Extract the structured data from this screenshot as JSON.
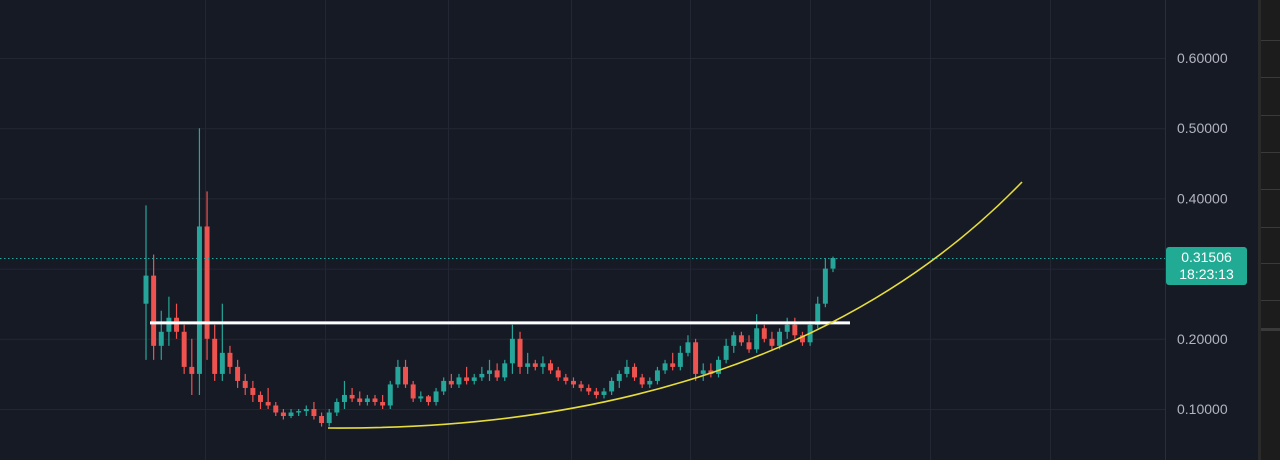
{
  "chart_data": {
    "type": "candlestick",
    "title": "",
    "xlabel": "",
    "ylabel": "",
    "ylim": [
      0.05,
      0.66
    ],
    "y_ticks": [
      "0.60000",
      "0.50000",
      "0.40000",
      "0.20000",
      "0.10000"
    ],
    "y_tick_values": [
      0.6,
      0.5,
      0.4,
      0.2,
      0.1
    ],
    "grid": true,
    "colors": {
      "up": "#26a69a",
      "down": "#ef5350",
      "background": "#161a25",
      "grid": "#232733",
      "horizontal_level": "#ffffff",
      "curve": "#e6dc3c"
    },
    "last_price": {
      "price": "0.31506",
      "countdown": "18:23:13",
      "value": 0.31506
    },
    "horizontal_level": 0.2226,
    "candles": [
      [
        0.25,
        0.39,
        0.17,
        0.29
      ],
      [
        0.29,
        0.32,
        0.17,
        0.19
      ],
      [
        0.19,
        0.24,
        0.17,
        0.21
      ],
      [
        0.21,
        0.26,
        0.19,
        0.23
      ],
      [
        0.23,
        0.25,
        0.2,
        0.21
      ],
      [
        0.21,
        0.22,
        0.15,
        0.16
      ],
      [
        0.16,
        0.2,
        0.12,
        0.15
      ],
      [
        0.15,
        0.5,
        0.12,
        0.36
      ],
      [
        0.36,
        0.41,
        0.17,
        0.2
      ],
      [
        0.2,
        0.22,
        0.14,
        0.15
      ],
      [
        0.15,
        0.25,
        0.14,
        0.18
      ],
      [
        0.18,
        0.19,
        0.15,
        0.16
      ],
      [
        0.16,
        0.17,
        0.13,
        0.14
      ],
      [
        0.14,
        0.15,
        0.12,
        0.13
      ],
      [
        0.13,
        0.14,
        0.11,
        0.12
      ],
      [
        0.12,
        0.125,
        0.1,
        0.11
      ],
      [
        0.11,
        0.13,
        0.1,
        0.105
      ],
      [
        0.105,
        0.11,
        0.09,
        0.095
      ],
      [
        0.095,
        0.1,
        0.085,
        0.09
      ],
      [
        0.09,
        0.1,
        0.087,
        0.095
      ],
      [
        0.095,
        0.1,
        0.09,
        0.097
      ],
      [
        0.097,
        0.105,
        0.09,
        0.1
      ],
      [
        0.1,
        0.11,
        0.085,
        0.09
      ],
      [
        0.09,
        0.095,
        0.075,
        0.08
      ],
      [
        0.08,
        0.1,
        0.075,
        0.095
      ],
      [
        0.095,
        0.115,
        0.09,
        0.11
      ],
      [
        0.11,
        0.14,
        0.1,
        0.12
      ],
      [
        0.12,
        0.13,
        0.11,
        0.115
      ],
      [
        0.115,
        0.125,
        0.105,
        0.11
      ],
      [
        0.11,
        0.12,
        0.105,
        0.115
      ],
      [
        0.115,
        0.12,
        0.105,
        0.11
      ],
      [
        0.11,
        0.12,
        0.1,
        0.105
      ],
      [
        0.105,
        0.14,
        0.1,
        0.135
      ],
      [
        0.135,
        0.17,
        0.13,
        0.16
      ],
      [
        0.16,
        0.17,
        0.13,
        0.135
      ],
      [
        0.135,
        0.14,
        0.11,
        0.115
      ],
      [
        0.115,
        0.125,
        0.11,
        0.118
      ],
      [
        0.118,
        0.12,
        0.105,
        0.11
      ],
      [
        0.11,
        0.13,
        0.105,
        0.125
      ],
      [
        0.125,
        0.145,
        0.12,
        0.14
      ],
      [
        0.14,
        0.15,
        0.13,
        0.135
      ],
      [
        0.135,
        0.15,
        0.13,
        0.145
      ],
      [
        0.145,
        0.16,
        0.135,
        0.14
      ],
      [
        0.14,
        0.15,
        0.135,
        0.145
      ],
      [
        0.145,
        0.16,
        0.14,
        0.15
      ],
      [
        0.15,
        0.17,
        0.14,
        0.155
      ],
      [
        0.155,
        0.165,
        0.14,
        0.145
      ],
      [
        0.145,
        0.17,
        0.14,
        0.165
      ],
      [
        0.165,
        0.22,
        0.15,
        0.2
      ],
      [
        0.2,
        0.21,
        0.15,
        0.16
      ],
      [
        0.16,
        0.18,
        0.15,
        0.165
      ],
      [
        0.165,
        0.17,
        0.155,
        0.16
      ],
      [
        0.16,
        0.175,
        0.15,
        0.165
      ],
      [
        0.165,
        0.17,
        0.15,
        0.155
      ],
      [
        0.155,
        0.16,
        0.14,
        0.145
      ],
      [
        0.145,
        0.15,
        0.135,
        0.14
      ],
      [
        0.14,
        0.145,
        0.13,
        0.135
      ],
      [
        0.135,
        0.14,
        0.125,
        0.13
      ],
      [
        0.13,
        0.135,
        0.12,
        0.125
      ],
      [
        0.125,
        0.13,
        0.115,
        0.12
      ],
      [
        0.12,
        0.13,
        0.115,
        0.125
      ],
      [
        0.125,
        0.145,
        0.12,
        0.14
      ],
      [
        0.14,
        0.155,
        0.13,
        0.15
      ],
      [
        0.15,
        0.17,
        0.145,
        0.16
      ],
      [
        0.16,
        0.165,
        0.14,
        0.145
      ],
      [
        0.145,
        0.15,
        0.13,
        0.135
      ],
      [
        0.135,
        0.145,
        0.13,
        0.14
      ],
      [
        0.14,
        0.16,
        0.135,
        0.155
      ],
      [
        0.155,
        0.17,
        0.15,
        0.165
      ],
      [
        0.165,
        0.18,
        0.155,
        0.16
      ],
      [
        0.16,
        0.19,
        0.155,
        0.18
      ],
      [
        0.18,
        0.205,
        0.175,
        0.195
      ],
      [
        0.195,
        0.2,
        0.14,
        0.15
      ],
      [
        0.15,
        0.165,
        0.14,
        0.155
      ],
      [
        0.155,
        0.165,
        0.145,
        0.15
      ],
      [
        0.15,
        0.175,
        0.145,
        0.17
      ],
      [
        0.17,
        0.2,
        0.165,
        0.19
      ],
      [
        0.19,
        0.21,
        0.18,
        0.205
      ],
      [
        0.205,
        0.21,
        0.19,
        0.195
      ],
      [
        0.195,
        0.205,
        0.18,
        0.185
      ],
      [
        0.185,
        0.235,
        0.18,
        0.215
      ],
      [
        0.215,
        0.22,
        0.195,
        0.2
      ],
      [
        0.2,
        0.21,
        0.185,
        0.19
      ],
      [
        0.19,
        0.215,
        0.185,
        0.21
      ],
      [
        0.21,
        0.23,
        0.2,
        0.22
      ],
      [
        0.22,
        0.23,
        0.2,
        0.205
      ],
      [
        0.205,
        0.21,
        0.19,
        0.195
      ],
      [
        0.195,
        0.225,
        0.19,
        0.22
      ],
      [
        0.22,
        0.26,
        0.215,
        0.25
      ],
      [
        0.25,
        0.315,
        0.245,
        0.3
      ],
      [
        0.3,
        0.317,
        0.295,
        0.31506
      ]
    ]
  }
}
